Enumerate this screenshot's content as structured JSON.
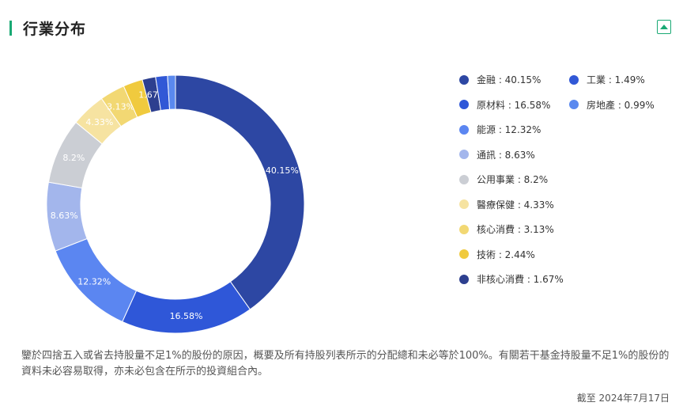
{
  "header": {
    "title": "行業分布"
  },
  "controls": {
    "collapse_icon": "triangle-up-icon"
  },
  "colors": {
    "accent": "#19a974"
  },
  "chart_data": {
    "type": "pie",
    "donut": true,
    "categories": [
      "金融",
      "原材料",
      "能源",
      "通訊",
      "公用事業",
      "醫療保健",
      "核心消費",
      "技術",
      "非核心消費",
      "工業",
      "房地產"
    ],
    "values": [
      40.15,
      16.58,
      12.32,
      8.63,
      8.2,
      4.33,
      3.13,
      2.44,
      1.67,
      1.49,
      0.99
    ],
    "colors": [
      "#2d47a3",
      "#2f57d8",
      "#5b86f1",
      "#a3b6ec",
      "#cbced4",
      "#f6e3a1",
      "#f2d873",
      "#f0ca3e",
      "#2d3f8f",
      "#3158d6",
      "#5a89ef"
    ],
    "slice_labels": [
      "40.15%",
      "16.58%",
      "12.32%",
      "8.63%",
      "8.2%",
      "4.33%",
      "3.13%",
      "",
      "1.67%",
      "",
      ""
    ],
    "legend_labels": [
      "金融 : 40.15%",
      "原材料 : 16.58%",
      "能源 : 12.32%",
      "通訊 : 8.63%",
      "公用事業 : 8.2%",
      "醫療保健 : 4.33%",
      "核心消費 : 3.13%",
      "技術 : 2.44%",
      "非核心消費 : 1.67%",
      "工業 : 1.49%",
      "房地產 : 0.99%"
    ],
    "legend_position": "right"
  },
  "footer": {
    "note": "鑒於四捨五入或省去持股量不足1%的股份的原因，概要及所有持股列表所示的分配總和未必等於100%。有關若干基金持股量不足1%的股份的資料未必容易取得，亦未必包含在所示的投資組合內。",
    "date": "截至 2024年7月17日"
  }
}
